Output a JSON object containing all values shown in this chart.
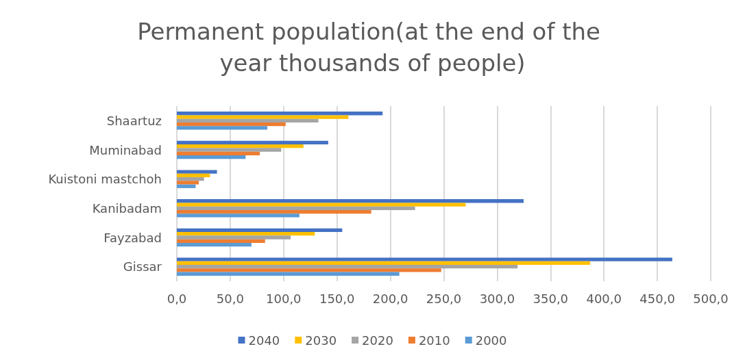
{
  "chart_data": {
    "type": "bar",
    "orientation": "horizontal",
    "title": "Permanent population(at the end of the year thousands of people)",
    "categories": [
      "Shaartuz",
      "Muminabad",
      "Kuistoni mastchoh",
      "Kanibadam",
      "Fayzabad",
      "Gissar"
    ],
    "series": [
      {
        "name": "2040",
        "color": "#4472c4",
        "values": [
          192.7,
          141.8,
          37.6,
          324.8,
          154.9,
          464.0
        ]
      },
      {
        "name": "2030",
        "color": "#ffc000",
        "values": [
          160.7,
          118.6,
          31.1,
          270.5,
          129.2,
          387.1
        ]
      },
      {
        "name": "2020",
        "color": "#a5a5a5",
        "values": [
          132.6,
          97.8,
          25.5,
          223.1,
          106.6,
          319.1
        ]
      },
      {
        "name": "2010",
        "color": "#ed7d31",
        "values": [
          101.9,
          77.7,
          20.6,
          182.1,
          82.6,
          247.6
        ]
      },
      {
        "name": "2000",
        "color": "#5b9bd5",
        "values": [
          84.7,
          64.4,
          17.6,
          114.8,
          69.9,
          208.4
        ]
      }
    ],
    "xlim": [
      0,
      500
    ],
    "xticks": [
      {
        "value": 0,
        "label": "0,0"
      },
      {
        "value": 50,
        "label": "50,0"
      },
      {
        "value": 100,
        "label": "100,0"
      },
      {
        "value": 150,
        "label": "150,0"
      },
      {
        "value": 200,
        "label": "200,0"
      },
      {
        "value": 250,
        "label": "250,0"
      },
      {
        "value": 300,
        "label": "300,0"
      },
      {
        "value": 350,
        "label": "350,0"
      },
      {
        "value": 400,
        "label": "400,0"
      },
      {
        "value": 450,
        "label": "450,0"
      },
      {
        "value": 500,
        "label": "500,0"
      }
    ],
    "grid": "x",
    "legend": "bottom"
  }
}
